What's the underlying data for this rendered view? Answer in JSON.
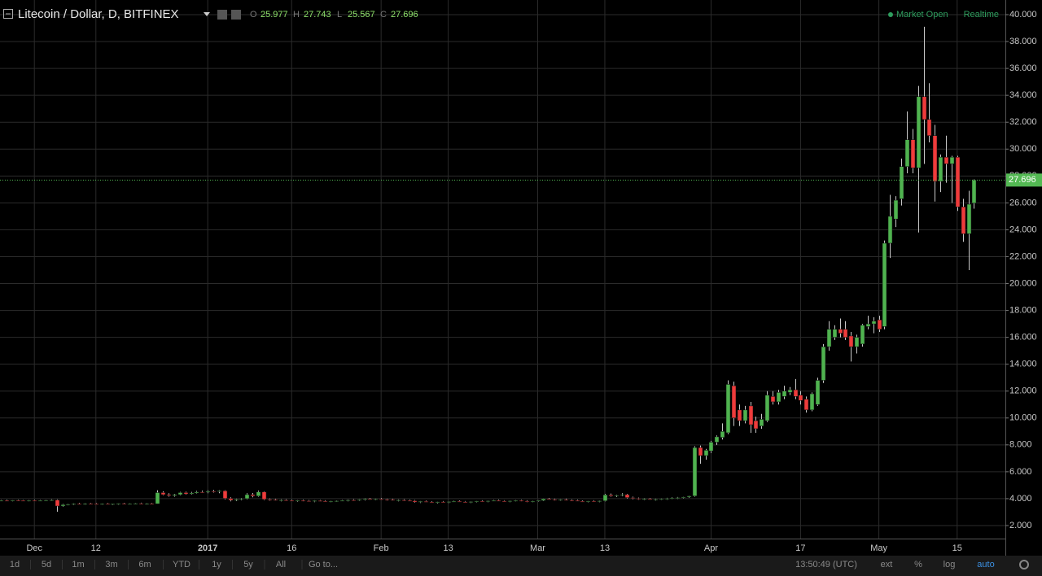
{
  "header": {
    "title": "Litecoin / Dollar, D, BITFINEX",
    "ohlc_labels": [
      "O",
      "H",
      "L",
      "C"
    ],
    "status": "Market Open",
    "mode": "Realtime"
  },
  "toolbar": {
    "ranges": [
      "1d",
      "5d",
      "1m",
      "3m",
      "6m",
      "YTD",
      "1y",
      "5y",
      "All",
      "Go to..."
    ],
    "clock": "13:50:49 (UTC)",
    "options": [
      "ext",
      "%",
      "log",
      "auto"
    ]
  },
  "chart_data": {
    "type": "candlestick",
    "log": false,
    "grid": true,
    "colors": {
      "up": "#4fb34f",
      "down": "#ef3b3b",
      "grid": "#2b2b2b",
      "last": "#53b953"
    },
    "categories": [
      null,
      null,
      null,
      null,
      null,
      null,
      "Dec",
      null,
      null,
      null,
      null,
      null,
      null,
      null,
      null,
      null,
      null,
      "12",
      null,
      null,
      null,
      null,
      null,
      null,
      null,
      null,
      null,
      null,
      null,
      null,
      null,
      null,
      null,
      null,
      null,
      null,
      null,
      "2017",
      null,
      null,
      null,
      null,
      null,
      null,
      null,
      null,
      null,
      null,
      null,
      null,
      null,
      null,
      "16",
      null,
      null,
      null,
      null,
      null,
      null,
      null,
      null,
      null,
      null,
      null,
      null,
      null,
      null,
      null,
      "Feb",
      null,
      null,
      null,
      null,
      null,
      null,
      null,
      null,
      null,
      null,
      null,
      "13",
      null,
      null,
      null,
      null,
      null,
      null,
      null,
      null,
      null,
      null,
      null,
      null,
      null,
      null,
      null,
      "Mar",
      null,
      null,
      null,
      null,
      null,
      null,
      null,
      null,
      null,
      null,
      null,
      "13",
      null,
      null,
      null,
      null,
      null,
      null,
      null,
      null,
      null,
      null,
      null,
      null,
      null,
      null,
      null,
      null,
      null,
      null,
      "Apr",
      null,
      null,
      null,
      null,
      null,
      null,
      null,
      null,
      null,
      null,
      null,
      null,
      null,
      null,
      null,
      "17",
      null,
      null,
      null,
      null,
      null,
      null,
      null,
      null,
      null,
      null,
      null,
      null,
      null,
      "May",
      null,
      null,
      null,
      null,
      null,
      null,
      null,
      null,
      null,
      null,
      null,
      null,
      null,
      "15",
      null,
      null,
      null
    ],
    "open": [
      3.84,
      3.86,
      3.85,
      3.88,
      3.86,
      3.84,
      3.87,
      3.85,
      3.86,
      3.88,
      3.9,
      3.45,
      3.55,
      3.58,
      3.62,
      3.6,
      3.63,
      3.61,
      3.59,
      3.62,
      3.58,
      3.61,
      3.64,
      3.6,
      3.62,
      3.65,
      3.61,
      3.63,
      3.62,
      4.45,
      4.3,
      4.22,
      4.3,
      4.45,
      4.35,
      4.42,
      4.5,
      4.48,
      4.55,
      4.52,
      4.58,
      4.02,
      3.88,
      3.95,
      4.0,
      4.3,
      4.2,
      4.5,
      3.95,
      3.92,
      3.88,
      3.9,
      3.86,
      3.82,
      3.87,
      3.84,
      3.8,
      3.85,
      3.82,
      3.78,
      3.81,
      3.84,
      3.86,
      3.9,
      3.88,
      3.92,
      3.98,
      3.94,
      3.97,
      3.95,
      3.92,
      3.88,
      3.9,
      3.86,
      3.84,
      3.75,
      3.79,
      3.74,
      3.7,
      3.76,
      3.73,
      3.78,
      3.8,
      3.77,
      3.74,
      3.78,
      3.82,
      3.8,
      3.84,
      3.86,
      3.83,
      3.8,
      3.84,
      3.87,
      3.82,
      3.78,
      3.81,
      3.86,
      3.98,
      3.94,
      3.9,
      3.93,
      3.88,
      3.86,
      3.8,
      3.78,
      3.82,
      3.79,
      3.84,
      4.28,
      4.2,
      4.25,
      4.3,
      4.08,
      4.02,
      3.96,
      3.98,
      3.94,
      3.96,
      3.99,
      4.02,
      4.05,
      4.08,
      4.12,
      4.2,
      7.8,
      7.2,
      7.55,
      8.2,
      8.55,
      8.9,
      12.4,
      10.6,
      9.8,
      10.9,
      9.8,
      9.4,
      9.8,
      11.6,
      11.2,
      11.6,
      11.9,
      12.1,
      11.7,
      11.4,
      10.6,
      11.0,
      12.8,
      15.3,
      16.0,
      16.6,
      16.6,
      16.1,
      15.3,
      15.5,
      16.8,
      17.0,
      17.3,
      16.8,
      23.0,
      24.8,
      26.3,
      28.7,
      30.7,
      28.6,
      33.9,
      32.2,
      31.0,
      27.6,
      29.4,
      28.9,
      29.4,
      25.7,
      23.7,
      25.977
    ],
    "high": [
      3.9,
      3.92,
      3.9,
      3.93,
      3.9,
      3.9,
      3.92,
      3.9,
      3.91,
      3.95,
      3.95,
      3.6,
      3.62,
      3.65,
      3.68,
      3.66,
      3.68,
      3.66,
      3.64,
      3.67,
      3.63,
      3.66,
      3.69,
      3.65,
      3.68,
      3.7,
      3.66,
      3.68,
      4.62,
      4.55,
      4.4,
      4.35,
      4.5,
      4.52,
      4.5,
      4.58,
      4.6,
      4.62,
      4.65,
      4.62,
      4.62,
      4.1,
      4.0,
      4.05,
      4.4,
      4.42,
      4.6,
      4.55,
      4.02,
      3.98,
      3.95,
      3.96,
      3.92,
      3.9,
      3.93,
      3.9,
      3.88,
      3.9,
      3.88,
      3.84,
      3.87,
      3.9,
      3.94,
      3.96,
      3.95,
      4.02,
      4.05,
      4.0,
      4.04,
      4.0,
      3.98,
      3.94,
      3.96,
      3.92,
      3.9,
      3.82,
      3.85,
      3.8,
      3.78,
      3.82,
      3.8,
      3.84,
      3.86,
      3.82,
      3.8,
      3.84,
      3.88,
      3.86,
      3.9,
      3.92,
      3.88,
      3.86,
      3.9,
      3.92,
      3.88,
      3.84,
      3.88,
      4.0,
      4.05,
      4.0,
      3.96,
      4.0,
      3.94,
      3.92,
      3.86,
      3.84,
      3.88,
      3.86,
      4.35,
      4.38,
      4.3,
      4.4,
      4.36,
      4.15,
      4.08,
      4.02,
      4.04,
      4.0,
      4.02,
      4.06,
      4.1,
      4.12,
      4.15,
      4.22,
      7.9,
      7.95,
      7.7,
      8.3,
      8.7,
      9.6,
      12.8,
      12.7,
      11.0,
      10.9,
      11.2,
      10.1,
      10.3,
      12.0,
      12.0,
      12.1,
      12.4,
      12.3,
      12.9,
      12.0,
      11.6,
      11.9,
      13.0,
      15.5,
      17.2,
      16.9,
      17.4,
      17.2,
      16.4,
      16.2,
      17.0,
      17.6,
      17.5,
      17.6,
      23.2,
      26.6,
      26.5,
      29.3,
      32.8,
      31.5,
      34.7,
      39.1,
      34.9,
      31.8,
      29.6,
      31.0,
      29.5,
      29.5,
      26.3,
      26.9,
      27.743
    ],
    "low": [
      3.8,
      3.82,
      3.8,
      3.83,
      3.8,
      3.79,
      3.82,
      3.8,
      3.82,
      3.84,
      3.03,
      3.4,
      3.5,
      3.52,
      3.56,
      3.54,
      3.57,
      3.55,
      3.53,
      3.56,
      3.52,
      3.55,
      3.58,
      3.55,
      3.57,
      3.58,
      3.56,
      3.57,
      3.6,
      4.25,
      4.15,
      4.15,
      4.25,
      4.3,
      4.3,
      4.38,
      4.42,
      4.4,
      4.45,
      4.4,
      3.95,
      3.8,
      3.82,
      3.88,
      3.95,
      4.1,
      4.15,
      3.9,
      3.85,
      3.84,
      3.8,
      3.84,
      3.78,
      3.76,
      3.8,
      3.78,
      3.74,
      3.78,
      3.75,
      3.72,
      3.76,
      3.78,
      3.8,
      3.84,
      3.82,
      3.86,
      3.9,
      3.88,
      3.9,
      3.86,
      3.84,
      3.8,
      3.82,
      3.78,
      3.7,
      3.68,
      3.72,
      3.66,
      3.65,
      3.7,
      3.68,
      3.72,
      3.74,
      3.7,
      3.68,
      3.72,
      3.76,
      3.74,
      3.78,
      3.8,
      3.76,
      3.74,
      3.78,
      3.8,
      3.74,
      3.72,
      3.76,
      3.82,
      3.9,
      3.86,
      3.84,
      3.86,
      3.82,
      3.78,
      3.74,
      3.72,
      3.76,
      3.74,
      3.8,
      4.15,
      4.12,
      4.18,
      4.02,
      3.96,
      3.92,
      3.88,
      3.9,
      3.86,
      3.9,
      3.92,
      3.96,
      3.98,
      4.02,
      4.06,
      4.15,
      6.6,
      6.9,
      7.4,
      8.0,
      8.4,
      8.8,
      9.4,
      9.4,
      9.6,
      8.9,
      8.9,
      9.2,
      9.7,
      11.0,
      11.0,
      11.4,
      11.7,
      11.4,
      11.0,
      10.4,
      10.5,
      10.9,
      12.6,
      15.0,
      15.8,
      16.0,
      15.8,
      14.2,
      14.8,
      15.3,
      16.6,
      16.3,
      16.4,
      16.6,
      21.9,
      24.2,
      25.8,
      28.2,
      28.2,
      23.8,
      28.9,
      30.5,
      26.1,
      26.8,
      27.5,
      26.0,
      25.4,
      23.1,
      21.0,
      25.567
    ],
    "close": [
      3.86,
      3.85,
      3.88,
      3.86,
      3.84,
      3.87,
      3.85,
      3.86,
      3.88,
      3.9,
      3.45,
      3.55,
      3.58,
      3.62,
      3.6,
      3.63,
      3.61,
      3.59,
      3.62,
      3.58,
      3.61,
      3.64,
      3.6,
      3.62,
      3.65,
      3.61,
      3.63,
      3.62,
      4.45,
      4.3,
      4.22,
      4.3,
      4.45,
      4.35,
      4.42,
      4.5,
      4.48,
      4.55,
      4.52,
      4.58,
      4.02,
      3.88,
      3.95,
      4.0,
      4.3,
      4.2,
      4.5,
      3.95,
      3.92,
      3.88,
      3.9,
      3.86,
      3.82,
      3.87,
      3.84,
      3.8,
      3.85,
      3.82,
      3.78,
      3.81,
      3.84,
      3.86,
      3.9,
      3.88,
      3.92,
      3.98,
      3.94,
      3.97,
      3.95,
      3.92,
      3.88,
      3.9,
      3.86,
      3.84,
      3.75,
      3.79,
      3.74,
      3.7,
      3.76,
      3.73,
      3.78,
      3.8,
      3.77,
      3.74,
      3.78,
      3.82,
      3.8,
      3.84,
      3.86,
      3.83,
      3.8,
      3.84,
      3.87,
      3.82,
      3.78,
      3.81,
      3.86,
      3.98,
      3.94,
      3.9,
      3.93,
      3.88,
      3.86,
      3.8,
      3.78,
      3.82,
      3.79,
      3.84,
      4.28,
      4.2,
      4.25,
      4.3,
      4.08,
      4.02,
      3.96,
      3.98,
      3.94,
      3.96,
      3.99,
      4.02,
      4.05,
      4.08,
      4.12,
      4.2,
      7.8,
      7.2,
      7.6,
      8.2,
      8.6,
      9.0,
      12.5,
      10.0,
      9.8,
      10.6,
      9.5,
      9.2,
      9.9,
      11.7,
      11.2,
      11.9,
      12.0,
      12.1,
      11.6,
      11.3,
      10.6,
      11.8,
      12.8,
      15.3,
      16.6,
      16.6,
      16.3,
      16.0,
      15.3,
      16.0,
      16.9,
      17.0,
      17.2,
      16.6,
      23.0,
      25.0,
      26.2,
      28.7,
      30.7,
      28.6,
      33.9,
      32.2,
      31.0,
      27.6,
      29.4,
      28.9,
      29.4,
      25.7,
      23.7,
      25.9,
      27.696
    ],
    "ylim": [
      1.03,
      41.09
    ],
    "yticks": [
      {
        "value": 2,
        "label": "2.000"
      },
      {
        "value": 4,
        "label": "4.000"
      },
      {
        "value": 6,
        "label": "6.000"
      },
      {
        "value": 8,
        "label": "8.000"
      },
      {
        "value": 10,
        "label": "10.000"
      },
      {
        "value": 12,
        "label": "12.000"
      },
      {
        "value": 14,
        "label": "14.000"
      },
      {
        "value": 16,
        "label": "16.000"
      },
      {
        "value": 18,
        "label": "18.000"
      },
      {
        "value": 20,
        "label": "20.000"
      },
      {
        "value": 22,
        "label": "22.000"
      },
      {
        "value": 24,
        "label": "24.000"
      },
      {
        "value": 26,
        "label": "26.000"
      },
      {
        "value": 28,
        "label": "28.000"
      },
      {
        "value": 30,
        "label": "30.000"
      },
      {
        "value": 32,
        "label": "32.000"
      },
      {
        "value": 34,
        "label": "34.000"
      },
      {
        "value": 36,
        "label": "36.000"
      },
      {
        "value": 38,
        "label": "38.000"
      },
      {
        "value": 40,
        "label": "40.000"
      }
    ]
  }
}
